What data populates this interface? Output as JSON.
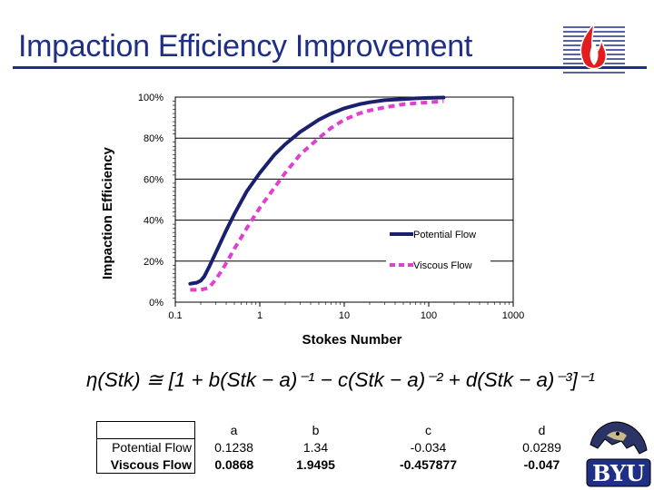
{
  "slide": {
    "title": "Impaction Efficiency Improvement"
  },
  "chart_data": {
    "type": "line",
    "xscale": "log",
    "xlim": [
      0.1,
      1000
    ],
    "ylim": [
      0,
      100
    ],
    "xlabel": "Stokes Number",
    "ylabel": "Impaction Efficiency",
    "x_ticks": [
      "0.1",
      "1",
      "10",
      "100",
      "1000"
    ],
    "y_ticks": [
      "0%",
      "20%",
      "40%",
      "60%",
      "80%",
      "100%"
    ],
    "grid": "horizontal",
    "legend_position": "bottom-right",
    "series": [
      {
        "name": "Potential Flow",
        "style": "solid",
        "color": "#1a1f6e",
        "x": [
          0.15,
          0.18,
          0.2,
          0.22,
          0.25,
          0.3,
          0.4,
          0.5,
          0.7,
          1.0,
          1.5,
          2.0,
          3.0,
          5.0,
          7.0,
          10,
          15,
          20,
          30,
          50,
          70,
          100,
          150
        ],
        "y": [
          9,
          9.5,
          10.5,
          12.5,
          17,
          24,
          35,
          43,
          54,
          63,
          72,
          77,
          83,
          89,
          92,
          94.5,
          96.5,
          97.5,
          98.5,
          99,
          99.4,
          99.6,
          99.8
        ]
      },
      {
        "name": "Viscous Flow",
        "style": "dashed",
        "color": "#e040d0",
        "x": [
          0.15,
          0.2,
          0.25,
          0.3,
          0.35,
          0.4,
          0.5,
          0.7,
          1.0,
          1.5,
          2.0,
          3.0,
          5.0,
          7.0,
          10,
          15,
          20,
          30,
          50,
          70,
          100,
          150
        ],
        "y": [
          6,
          6,
          7,
          11,
          15,
          19,
          26,
          36,
          46,
          56,
          63,
          72,
          80,
          85,
          89,
          92,
          93.5,
          95,
          96.5,
          97,
          97.5,
          98
        ]
      }
    ]
  },
  "formula": {
    "text": "η(Stk) ≅ [1 + b(Stk − a)⁻¹ − c(Stk − a)⁻² + d(Stk − a)⁻³]⁻¹"
  },
  "table": {
    "headers": [
      "a",
      "b",
      "c",
      "d"
    ],
    "rows": [
      {
        "label": "Potential Flow",
        "values": [
          "0.1238",
          "1.34",
          "-0.034",
          "0.0289"
        ]
      },
      {
        "label": "Viscous Flow",
        "values": [
          "0.0868",
          "1.9495",
          "-0.457877",
          "-0.047"
        ]
      }
    ]
  },
  "logos": {
    "top_right": "flame-logo",
    "bottom_right": "byu-cougar-logo",
    "byu_text": "BYU"
  }
}
